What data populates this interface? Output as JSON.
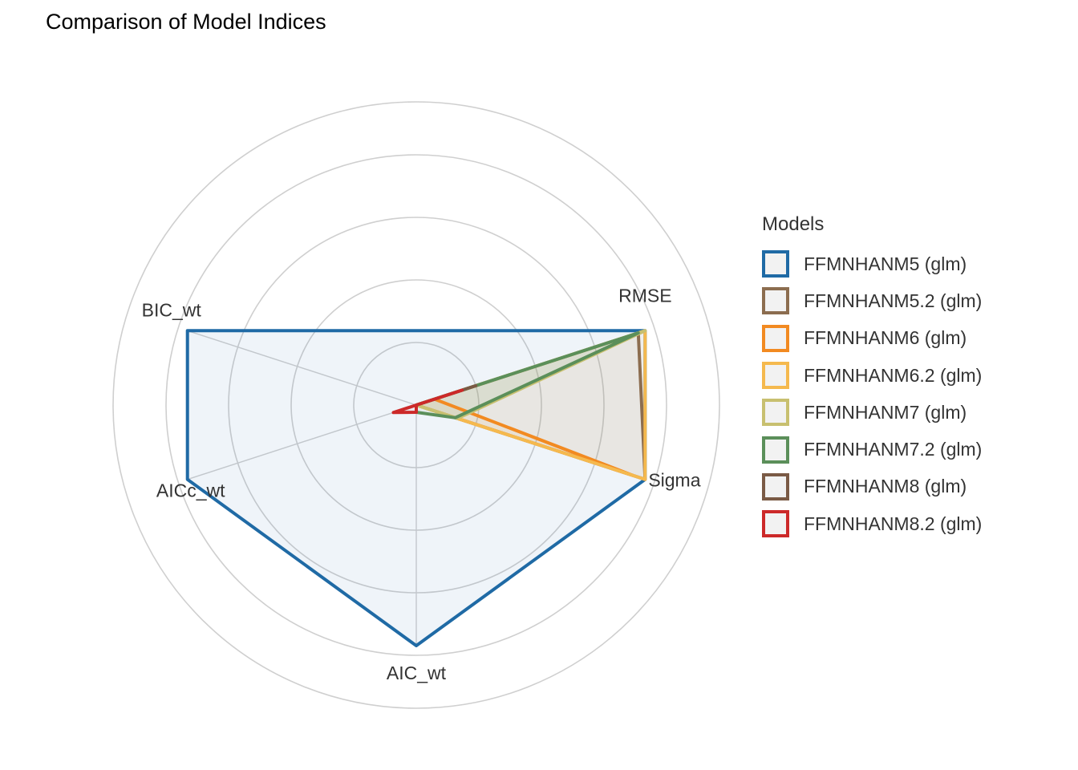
{
  "chart_data": {
    "type": "radar",
    "title": "Comparison of Model Indices",
    "axes": [
      "RMSE",
      "Sigma",
      "AIC_wt",
      "AICc_wt",
      "BIC_wt"
    ],
    "rlim": [
      0,
      1
    ],
    "grid": true,
    "legend_title": "Models",
    "legend_position": "right",
    "series": [
      {
        "name": "FFMNHANM5 (glm)",
        "color": "#1f6aa5",
        "values": [
          1.0,
          1.0,
          1.0,
          1.0,
          1.0
        ]
      },
      {
        "name": "FFMNHANM5.2 (glm)",
        "color": "#8c6d4f",
        "values": [
          0.97,
          1.0,
          0.0,
          0.0,
          0.0
        ]
      },
      {
        "name": "FFMNHANM6 (glm)",
        "color": "#f28a21",
        "values": [
          0.08,
          0.95,
          0.0,
          0.0,
          0.0
        ]
      },
      {
        "name": "FFMNHANM6.2 (glm)",
        "color": "#f5b94e",
        "values": [
          1.0,
          1.0,
          0.0,
          0.0,
          0.0
        ]
      },
      {
        "name": "FFMNHANM7 (glm)",
        "color": "#c8c070",
        "values": [
          1.0,
          0.18,
          0.0,
          0.0,
          0.0
        ]
      },
      {
        "name": "FFMNHANM7.2 (glm)",
        "color": "#5b8f5a",
        "values": [
          0.97,
          0.17,
          0.03,
          0.0,
          0.0
        ]
      },
      {
        "name": "FFMNHANM8 (glm)",
        "color": "#7a5a45",
        "values": [
          0.26,
          0.0,
          0.0,
          0.0,
          0.0
        ]
      },
      {
        "name": "FFMNHANM8.2 (glm)",
        "color": "#cc2929",
        "values": [
          0.2,
          0.0,
          0.03,
          0.1,
          0.0
        ]
      }
    ]
  }
}
